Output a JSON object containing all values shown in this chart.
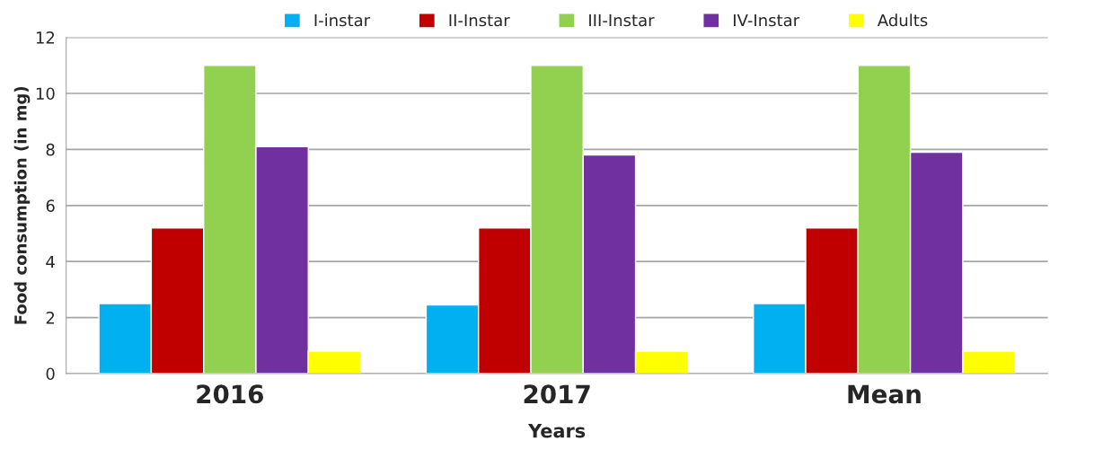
{
  "chart_data": {
    "type": "bar",
    "xlabel": "Years",
    "ylabel": "Food consumption (in mg)",
    "categories": [
      "2016",
      "2017",
      "Mean"
    ],
    "series": [
      {
        "name": "I-instar",
        "color": "#00b0f0",
        "values": [
          2.5,
          2.45,
          2.5
        ]
      },
      {
        "name": "II-Instar",
        "color": "#c00000",
        "values": [
          5.2,
          5.2,
          5.2
        ]
      },
      {
        "name": "III-Instar",
        "color": "#92d050",
        "values": [
          11.0,
          11.0,
          11.0
        ]
      },
      {
        "name": "IV-Instar",
        "color": "#7030a0",
        "values": [
          8.1,
          7.8,
          7.9
        ]
      },
      {
        "name": "Adults",
        "color": "#ffff00",
        "values": [
          0.8,
          0.8,
          0.8
        ]
      }
    ],
    "ylim": [
      0,
      12
    ],
    "yticks": [
      0,
      2,
      4,
      6,
      8,
      10,
      12
    ],
    "grid": "y",
    "legend": "top"
  }
}
